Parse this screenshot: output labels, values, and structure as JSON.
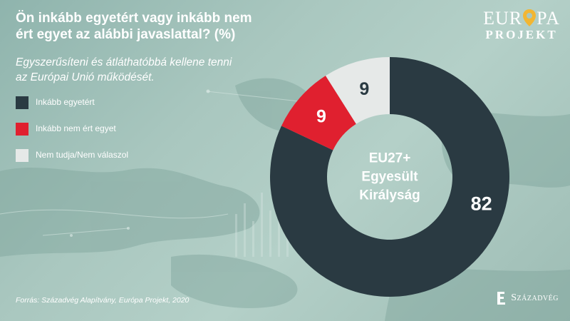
{
  "header": {
    "title_line1": "Ön inkább egyetért vagy inkább nem",
    "title_line2": "ért egyet az alábbi javaslattal?  (%)",
    "subtitle_line1": "Egyszerűsíteni és átláthatóbbá kellene tenni",
    "subtitle_line2": "az Európai Unió működését."
  },
  "legend": [
    {
      "label": "Inkább egyetért",
      "color": "#2a3a42"
    },
    {
      "label": "Inkább nem ért egyet",
      "color": "#e0202f"
    },
    {
      "label": "Nem tudja/Nem válaszol",
      "color": "#e6e9e8"
    }
  ],
  "chart_data": {
    "type": "pie",
    "donut": true,
    "center_label_lines": [
      "EU27+",
      "Egyesült",
      "Királyság"
    ],
    "categories": [
      "Inkább egyetért",
      "Inkább nem ért egyet",
      "Nem tudja/Nem válaszol"
    ],
    "values": [
      82,
      9,
      9
    ],
    "colors": [
      "#2a3a42",
      "#e0202f",
      "#e6e9e8"
    ],
    "label_colors": [
      "#ffffff",
      "#ffffff",
      "#2a3a42"
    ]
  },
  "footer": {
    "source": "Forrás: Századvég Alapítvány, Európa Projekt, 2020"
  },
  "logos": {
    "europa_top": "EUR PA",
    "europa_bottom": "PROJEKT",
    "pin_color": "#f2b632",
    "szazadveg": "Századvég"
  }
}
